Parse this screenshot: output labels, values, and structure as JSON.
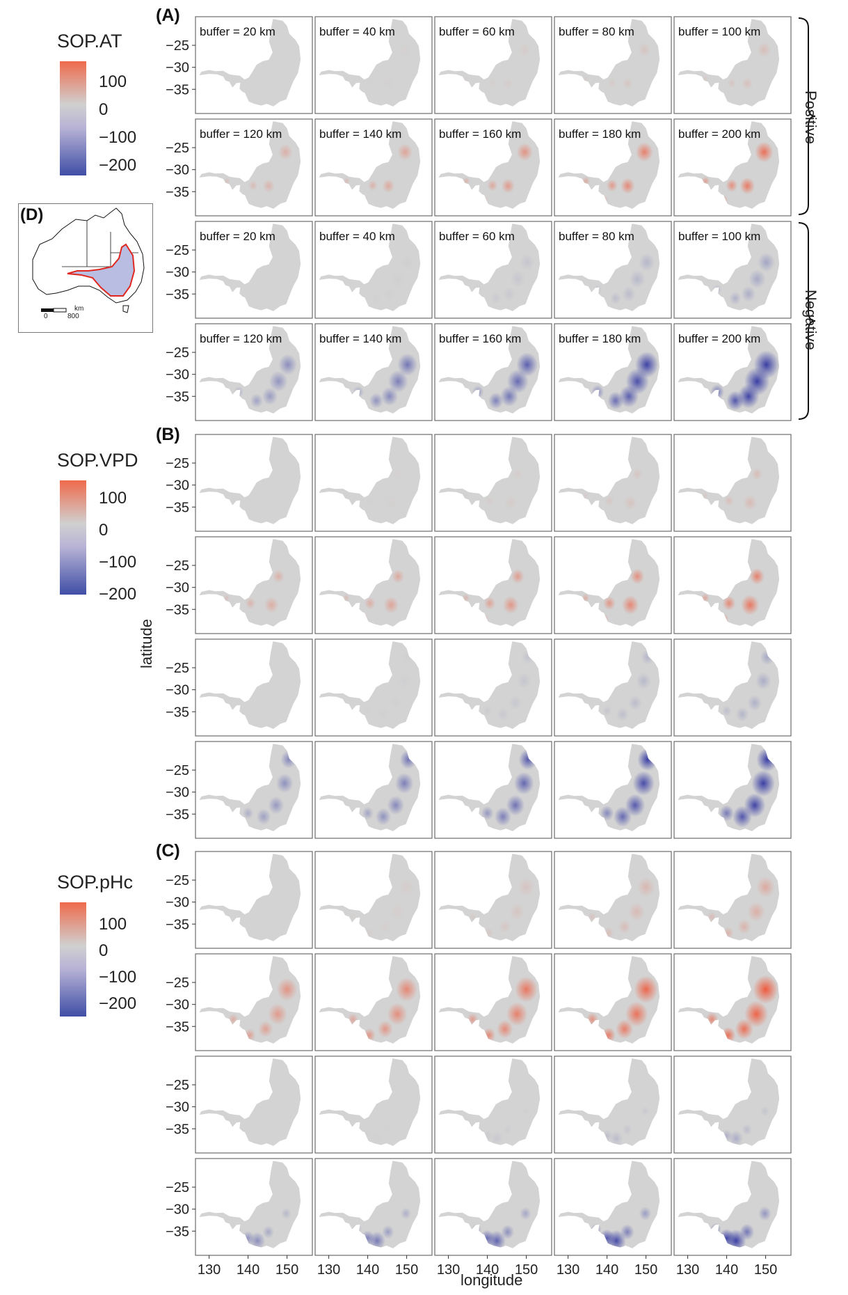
{
  "chart_data": {
    "type": "heatmap",
    "xlabel": "longitude",
    "ylabel": "latitude",
    "x_ticks": [
      130,
      140,
      150
    ],
    "y_ticks": [
      -25,
      -30,
      -35
    ],
    "column_facets": [
      "buffer = 20 km",
      "buffer = 40 km",
      "buffer = 60 km",
      "buffer = 80 km",
      "buffer = 100 km",
      "buffer = 120 km",
      "buffer = 140 km",
      "buffer = 160 km",
      "buffer = 180 km",
      "buffer = 200 km"
    ],
    "direction_labels": [
      "Positive",
      "Negative"
    ],
    "panels": [
      {
        "tag": "(A)",
        "legend_title": "SOP.AT",
        "legend_ticks": [
          "100",
          "0",
          "−100",
          "−200"
        ],
        "positive_intensity": [
          0.0,
          0.02,
          0.05,
          0.09,
          0.14,
          0.22,
          0.3,
          0.4,
          0.52,
          0.62
        ],
        "negative_intensity": [
          0.0,
          0.02,
          0.07,
          0.15,
          0.24,
          0.36,
          0.48,
          0.6,
          0.75,
          0.92
        ]
      },
      {
        "tag": "(B)",
        "legend_title": "SOP.VPD",
        "legend_ticks": [
          "100",
          "0",
          "−100",
          "−200"
        ],
        "positive_intensity": [
          0.0,
          0.02,
          0.05,
          0.1,
          0.16,
          0.24,
          0.3,
          0.38,
          0.48,
          0.58
        ],
        "negative_intensity": [
          0.0,
          0.02,
          0.08,
          0.15,
          0.22,
          0.38,
          0.48,
          0.62,
          0.78,
          0.92
        ]
      },
      {
        "tag": "(C)",
        "legend_title": "SOP.pHc",
        "legend_ticks": [
          "100",
          "0",
          "−100",
          "−200"
        ],
        "positive_intensity": [
          0.0,
          0.04,
          0.1,
          0.18,
          0.26,
          0.4,
          0.48,
          0.58,
          0.68,
          0.78
        ],
        "negative_intensity": [
          0.0,
          0.01,
          0.05,
          0.12,
          0.2,
          0.36,
          0.46,
          0.58,
          0.7,
          0.8
        ]
      }
    ],
    "colorscale": {
      "high": "#ef6a4c",
      "mid": "#d0d0d0",
      "low": "#3f4ea6",
      "range": [
        -200,
        100
      ]
    },
    "inset": {
      "tag": "(D)",
      "scale_label": "km",
      "scale_ticks": [
        "0",
        "800"
      ],
      "colors": {
        "outline": "#111111",
        "region_fill": "#b9bde2",
        "region_edge": "#e0271f"
      }
    }
  }
}
